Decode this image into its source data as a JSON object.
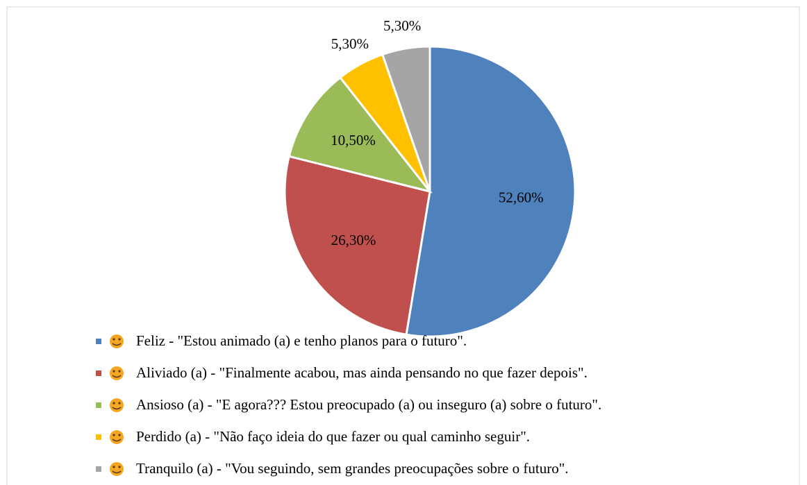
{
  "chart_data": {
    "type": "pie",
    "categories": [
      "Feliz - \"Estou animado (a) e tenho planos para o futuro\".",
      "Aliviado (a) - \"Finalmente acabou, mas ainda pensando no que fazer depois\".",
      "Ansioso (a) - \"E agora??? Estou preocupado (a) ou inseguro (a) sobre o futuro\".",
      "Perdido (a) - \"Não faço ideia do que fazer ou qual caminho seguir\".",
      "Tranquilo (a) - \"Vou seguindo, sem grandes preocupações sobre o futuro\"."
    ],
    "values": [
      52.6,
      26.3,
      10.5,
      5.3,
      5.3
    ],
    "value_labels": [
      "52,60%",
      "26,30%",
      "10,50%",
      "5,30%",
      "5,30%"
    ],
    "colors": [
      "#4f81bd",
      "#c0504d",
      "#9bbb59",
      "#ffc000",
      "#a5a5a5"
    ],
    "legend": "bottom"
  }
}
